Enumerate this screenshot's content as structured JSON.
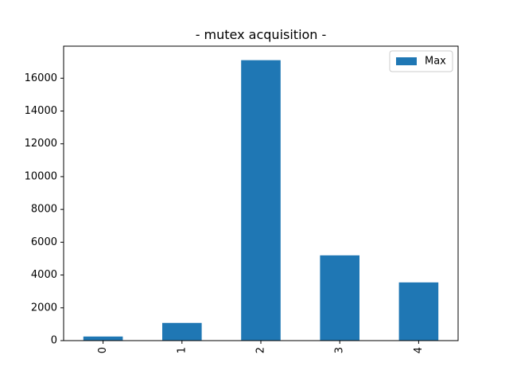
{
  "chart_data": {
    "type": "bar",
    "title": "- mutex acquisition -",
    "xlabel": "",
    "ylabel": "",
    "categories": [
      "0",
      "1",
      "2",
      "3",
      "4"
    ],
    "series": [
      {
        "name": "Max",
        "color": "#1f77b4",
        "values": [
          250,
          1080,
          17100,
          5200,
          3550
        ]
      }
    ],
    "ylim": [
      0,
      17955
    ],
    "yticks": [
      0,
      2000,
      4000,
      6000,
      8000,
      10000,
      12000,
      14000,
      16000
    ],
    "grid": false,
    "legend_position": "top-right"
  }
}
